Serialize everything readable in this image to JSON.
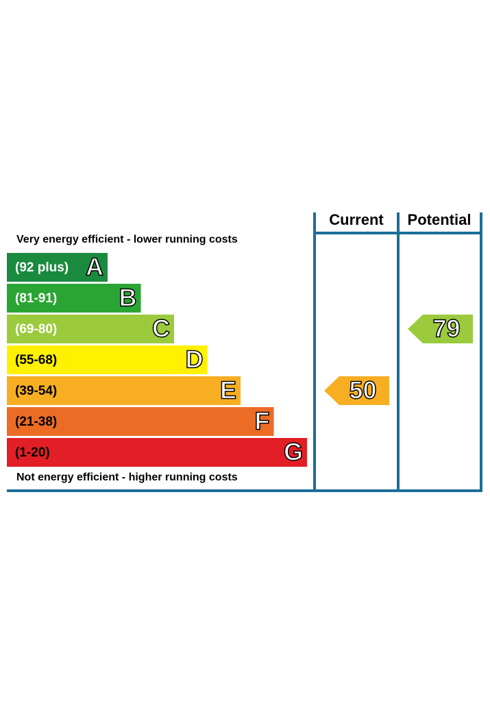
{
  "header": {
    "current": "Current",
    "potential": "Potential"
  },
  "top_note": "Very energy efficient - lower running costs",
  "bottom_note": "Not energy efficient - higher running costs",
  "bands": [
    {
      "range": "(92 plus)",
      "letter": "A",
      "color": "#1a8a3f"
    },
    {
      "range": "(81-91)",
      "letter": "B",
      "color": "#2aa534"
    },
    {
      "range": "(69-80)",
      "letter": "C",
      "color": "#9bcb3d"
    },
    {
      "range": "(55-68)",
      "letter": "D",
      "color": "#fff100"
    },
    {
      "range": "(39-54)",
      "letter": "E",
      "color": "#f7ae22"
    },
    {
      "range": "(21-38)",
      "letter": "F",
      "color": "#ec6b25"
    },
    {
      "range": "(1-20)",
      "letter": "G",
      "color": "#e21f26"
    }
  ],
  "ratings": {
    "current": 50,
    "potential": 79
  }
}
